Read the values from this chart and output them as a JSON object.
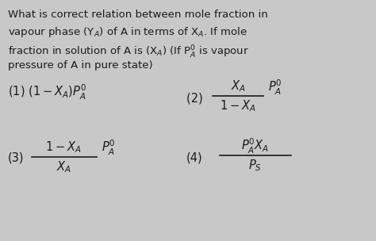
{
  "background_color": "#c8c8c8",
  "text_color": "#1a1a1a",
  "figsize": [
    4.74,
    3.04
  ],
  "dpi": 100,
  "question_lines": [
    "What is correct relation between mole fraction in",
    "vapour phase (Y$_A$) of A in terms of X$_A$. If mole",
    "fraction in solution of A is (X$_A$) (If P$_A^0$ is vapour",
    "pressure of A in pure state)"
  ],
  "option1": "(1) $(1-X_A)P_A^0$",
  "option2_label": "(2) ",
  "option2_num": "$X_A$",
  "option2_den": "$1-X_A$",
  "option2_suffix": "$P_A^0$",
  "option3_label": "(3)",
  "option3_num": "$1-X_A$",
  "option3_den": "$X_A$",
  "option3_suffix": "$P_A^0$",
  "option4_label": "(4)",
  "option4_num": "$P_A^0 X_A$",
  "option4_den": "$P_S$",
  "question_fontsize": 9.5,
  "option_fontsize": 10.5
}
